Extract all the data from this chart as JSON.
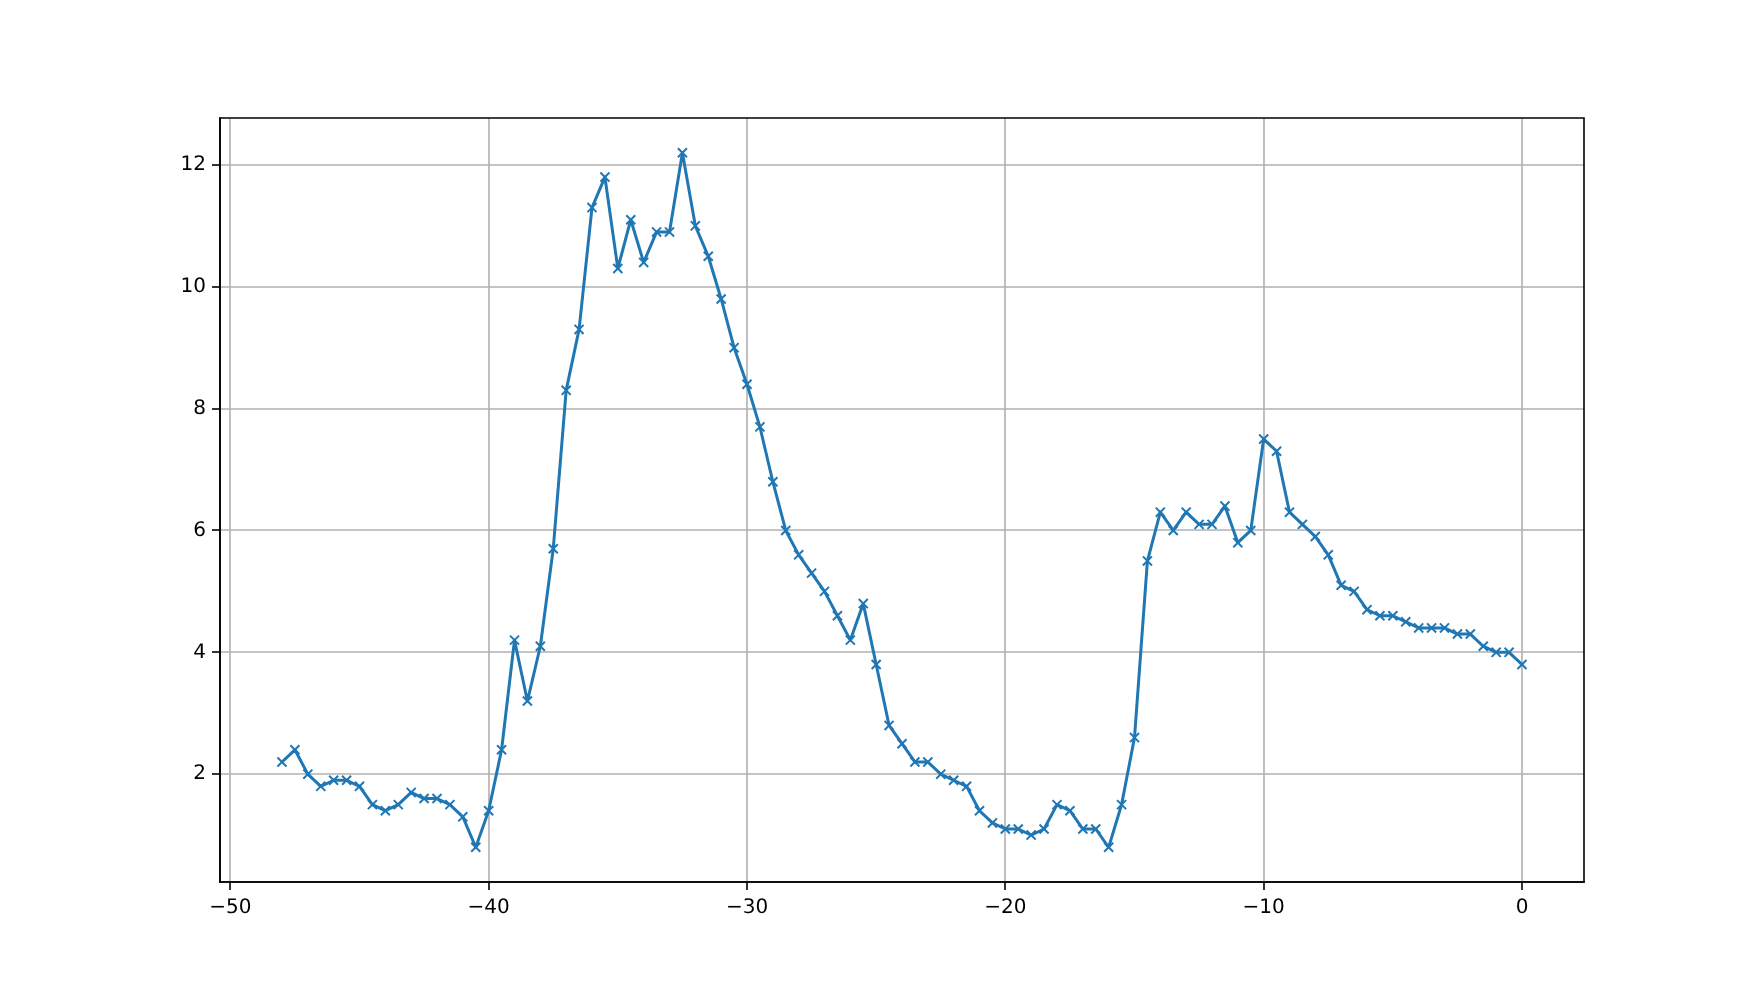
{
  "chart_data": {
    "type": "line",
    "color": "#1f77b4",
    "marker": "cross",
    "line_style": "solid",
    "grid": true,
    "x": [
      -48,
      -47.5,
      -47,
      -46.5,
      -46,
      -45.5,
      -45,
      -44.5,
      -44,
      -43.5,
      -43,
      -42.5,
      -42,
      -41.5,
      -41,
      -40.5,
      -40,
      -39.5,
      -39,
      -38.5,
      -38,
      -37.5,
      -37,
      -36.5,
      -36,
      -35.5,
      -35,
      -34.5,
      -34,
      -33.5,
      -33,
      -32.5,
      -32,
      -31.5,
      -31,
      -30.5,
      -30,
      -29.5,
      -29,
      -28.5,
      -28,
      -27.5,
      -27,
      -26.5,
      -26,
      -25.5,
      -25,
      -24.5,
      -24,
      -23.5,
      -23,
      -22.5,
      -22,
      -21.5,
      -21,
      -20.5,
      -20,
      -19.5,
      -19,
      -18.5,
      -18,
      -17.5,
      -17,
      -16.5,
      -16,
      -15.5,
      -15,
      -14.5,
      -14,
      -13.5,
      -13,
      -12.5,
      -12,
      -11.5,
      -11,
      -10.5,
      -10,
      -9.5,
      -9,
      -8.5,
      -8,
      -7.5,
      -7,
      -6.5,
      -6,
      -5.5,
      -5,
      -4.5,
      -4,
      -3.5,
      -3,
      -2.5,
      -2,
      -1.5,
      -1,
      -0.5,
      0
    ],
    "values": [
      2.2,
      2.4,
      2.0,
      1.8,
      1.9,
      1.9,
      1.8,
      1.5,
      1.4,
      1.5,
      1.7,
      1.6,
      1.6,
      1.5,
      1.3,
      0.8,
      1.4,
      2.4,
      4.2,
      3.2,
      4.1,
      5.7,
      8.3,
      9.3,
      11.3,
      11.8,
      10.3,
      11.1,
      10.4,
      10.9,
      10.9,
      12.2,
      11.0,
      10.5,
      9.8,
      9.0,
      8.4,
      7.7,
      6.8,
      6.0,
      5.6,
      5.3,
      5.0,
      4.6,
      4.2,
      4.8,
      3.8,
      2.8,
      2.5,
      2.2,
      2.2,
      2.0,
      1.9,
      1.8,
      1.4,
      1.2,
      1.1,
      1.1,
      1.0,
      1.1,
      1.5,
      1.4,
      1.1,
      1.1,
      0.8,
      1.5,
      2.6,
      5.5,
      6.3,
      6.0,
      6.3,
      6.1,
      6.1,
      6.4,
      5.8,
      6.0,
      7.5,
      7.3,
      6.3,
      6.1,
      5.9,
      5.6,
      5.1,
      5.0,
      4.7,
      4.6,
      4.6,
      4.5,
      4.4,
      4.4,
      4.4,
      4.3,
      4.3,
      4.1,
      4.0,
      4.0,
      3.8
    ],
    "xlim": [
      -50.4,
      2.4
    ],
    "ylim": [
      0.23,
      12.77
    ],
    "xticks": [
      {
        "value": -50,
        "label": "−50"
      },
      {
        "value": -40,
        "label": "−40"
      },
      {
        "value": -30,
        "label": "−30"
      },
      {
        "value": -20,
        "label": "−20"
      },
      {
        "value": -10,
        "label": "−10"
      },
      0
    ],
    "yticks": [
      2,
      4,
      6,
      8,
      10,
      12
    ]
  }
}
